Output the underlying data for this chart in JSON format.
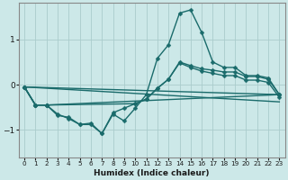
{
  "xlabel": "Humidex (Indice chaleur)",
  "xlim": [
    -0.5,
    23.5
  ],
  "ylim": [
    -1.6,
    1.8
  ],
  "bg_color": "#cce8e8",
  "grid_color": "#aacccc",
  "line_color": "#1a6b6b",
  "line_width": 1.0,
  "marker": "D",
  "marker_size": 2.5,
  "yticks": [
    -1,
    0,
    1
  ],
  "xticks": [
    0,
    1,
    2,
    3,
    4,
    5,
    6,
    7,
    8,
    9,
    10,
    11,
    12,
    13,
    14,
    15,
    16,
    17,
    18,
    19,
    20,
    21,
    22,
    23
  ],
  "lines": [
    {
      "x": [
        0,
        1,
        2,
        3,
        4,
        5,
        6,
        7,
        8,
        9,
        10,
        11,
        12,
        13,
        14,
        15,
        16,
        17,
        18,
        19,
        20,
        21,
        22,
        23
      ],
      "y": [
        -0.05,
        -0.45,
        -0.45,
        -0.65,
        -0.75,
        -0.88,
        -0.88,
        -1.08,
        -0.65,
        -0.8,
        -0.52,
        -0.22,
        0.58,
        0.88,
        1.58,
        1.65,
        1.15,
        0.5,
        0.38,
        0.38,
        0.2,
        0.2,
        0.15,
        -0.22
      ]
    },
    {
      "x": [
        0,
        1,
        2,
        10,
        11,
        12,
        13,
        14,
        15,
        16,
        17,
        18,
        19,
        20,
        21,
        22,
        23
      ],
      "y": [
        -0.05,
        -0.45,
        -0.45,
        -0.42,
        -0.32,
        -0.08,
        0.12,
        0.5,
        0.42,
        0.35,
        0.32,
        0.28,
        0.28,
        0.18,
        0.18,
        0.12,
        -0.22
      ]
    },
    {
      "x": [
        0,
        1,
        2,
        23
      ],
      "y": [
        -0.05,
        -0.45,
        -0.45,
        -0.22
      ]
    },
    {
      "x": [
        0,
        1,
        2,
        3,
        4,
        5,
        6,
        7,
        8,
        9,
        10,
        11,
        12,
        13,
        14,
        15,
        16,
        17,
        18,
        19,
        20,
        21,
        22,
        23
      ],
      "y": [
        -0.05,
        -0.45,
        -0.45,
        -0.68,
        -0.72,
        -0.88,
        -0.85,
        -1.08,
        -0.62,
        -0.52,
        -0.42,
        -0.32,
        -0.08,
        0.12,
        0.48,
        0.38,
        0.3,
        0.25,
        0.2,
        0.2,
        0.1,
        0.1,
        0.05,
        -0.28
      ]
    }
  ],
  "straight_lines": [
    {
      "x": [
        0,
        23
      ],
      "y": [
        -0.05,
        -0.22
      ]
    },
    {
      "x": [
        0,
        23
      ],
      "y": [
        -0.05,
        -0.38
      ]
    }
  ]
}
